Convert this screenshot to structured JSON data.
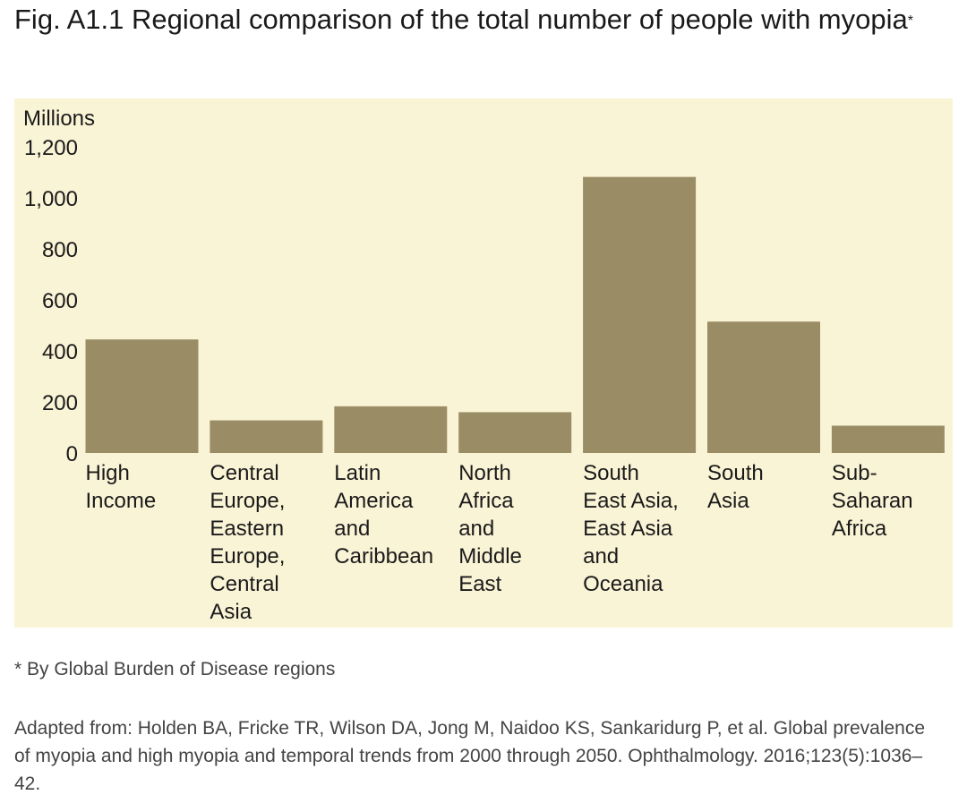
{
  "figure": {
    "title": "Fig. A1.1 Regional comparison of the total number of people with myopia",
    "title_marker": "*",
    "footnote": "* By Global Burden of Disease regions",
    "source": "Adapted from: Holden BA, Fricke TR, Wilson DA, Jong M, Naidoo KS, Sankaridurg P, et al. Global prevalence of myopia and high myopia and temporal trends from 2000 through 2050. Ophthalmology. 2016;123(5):1036–42."
  },
  "colors": {
    "panel_background": "#faf4d6",
    "bar": "#9a8d66",
    "text": "#1a1a1a"
  },
  "chart_data": {
    "type": "bar",
    "ylabel": "Millions",
    "ylim": [
      0,
      1200
    ],
    "yticks": [
      0,
      200,
      400,
      600,
      800,
      1000,
      1200
    ],
    "ytick_labels": [
      "0",
      "200",
      "400",
      "600",
      "800",
      "1,000",
      "1,200"
    ],
    "grid": false,
    "legend": "none",
    "categories": [
      [
        "High",
        "Income"
      ],
      [
        "Central",
        "Europe,",
        "Eastern",
        "Europe,",
        "Central",
        "Asia"
      ],
      [
        "Latin",
        "America",
        "and",
        "Caribbean"
      ],
      [
        "North",
        "Africa",
        "and",
        "Middle",
        "East"
      ],
      [
        "South",
        "East Asia,",
        "East Asia",
        "and",
        "Oceania"
      ],
      [
        "South",
        "Asia"
      ],
      [
        "Sub-",
        "Saharan",
        "Africa"
      ]
    ],
    "values": [
      445,
      128,
      183,
      160,
      1082,
      515,
      107
    ]
  }
}
